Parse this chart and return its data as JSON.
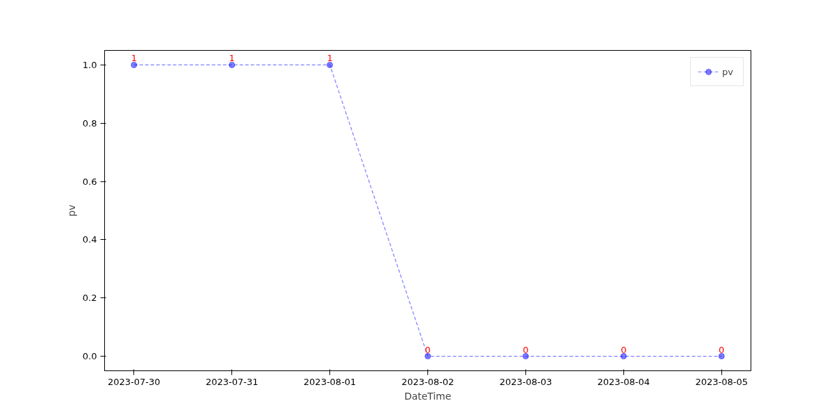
{
  "chart_data": {
    "type": "line",
    "xlabel": "DateTime",
    "ylabel": "pv",
    "categories": [
      "2023-07-30",
      "2023-07-31",
      "2023-08-01",
      "2023-08-02",
      "2023-08-03",
      "2023-08-04",
      "2023-08-05"
    ],
    "series": [
      {
        "name": "pv",
        "color": "#0000ff",
        "values": [
          1,
          1,
          1,
          0,
          0,
          0,
          0
        ]
      }
    ],
    "ylim": [
      -0.05,
      1.05
    ],
    "yticks": [
      {
        "value": 0,
        "label": "0.0"
      },
      {
        "value": 0.2,
        "label": "0.2"
      },
      {
        "value": 0.4,
        "label": "0.4"
      },
      {
        "value": 0.6,
        "label": "0.6"
      },
      {
        "value": 0.8,
        "label": "0.8"
      },
      {
        "value": 1,
        "label": "1.0"
      }
    ],
    "marker": "circle",
    "line_style": "dashed",
    "legend": "top right",
    "grid": false,
    "data_labels": true
  }
}
